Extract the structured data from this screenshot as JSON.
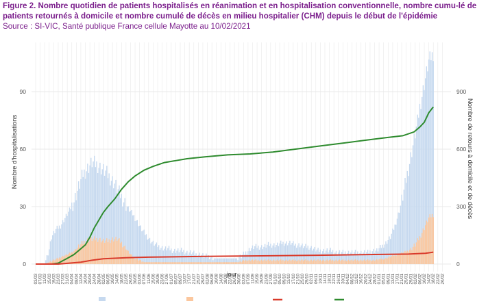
{
  "header": {
    "title": "Figure 2. Nombre quotidien de patients hospitalisés en réanimation et en hospitalisation conventionnelle, nombre cumu-lé de patients retournés à domicile et nombre cumulé de décès en milieu hospitalier (CHM) depuis le début de l'épidémie",
    "source": "Source : SI-VIC, Santé publique France cellule Mayotte au 10/02/2021"
  },
  "colors": {
    "hospit": "#c6d9ef",
    "rea": "#fbc79e",
    "deces": "#d93a2b",
    "retour": "#2e8b2e",
    "grid": "#e9e9e9",
    "axis_text": "#555555"
  },
  "chart_data": {
    "type": "bar",
    "xlabel": "jour",
    "ylabel": "Nombre d'hospitalisations",
    "y2label": "Nombre de retours à domicile et de décès",
    "ylim": [
      0,
      112
    ],
    "y2lim": [
      0,
      1120
    ],
    "yticks": [
      0,
      30,
      60,
      90
    ],
    "y2ticks": [
      0,
      300,
      600,
      900
    ],
    "grid": true,
    "x_tick_labels": [
      "03/03",
      "07/03",
      "11/03",
      "15/03",
      "19/03",
      "23/03",
      "27/03",
      "31/03",
      "04/04",
      "08/04",
      "12/04",
      "16/04",
      "20/04",
      "24/04",
      "28/04",
      "02/05",
      "06/05",
      "10/05",
      "14/05",
      "18/05",
      "22/05",
      "26/05",
      "30/05",
      "03/06",
      "07/06",
      "11/06",
      "15/06",
      "19/06",
      "23/06",
      "27/06",
      "01/07",
      "05/07",
      "09/07",
      "13/07",
      "17/07",
      "21/07",
      "25/07",
      "29/07",
      "02/08",
      "06/08",
      "10/08",
      "14/08",
      "18/08",
      "22/08",
      "26/08",
      "30/08",
      "03/09",
      "07/09",
      "11/09",
      "15/09",
      "19/09",
      "23/09",
      "27/09",
      "01/10",
      "05/10",
      "09/10",
      "13/10",
      "17/10",
      "21/10",
      "25/10",
      "29/10",
      "02/11",
      "06/11",
      "10/11",
      "14/11",
      "18/11",
      "22/11",
      "26/11",
      "30/11",
      "04/12",
      "08/12",
      "12/12",
      "16/12",
      "20/12",
      "24/12",
      "28/12",
      "01/01",
      "05/01",
      "09/01",
      "13/01",
      "17/01",
      "21/01",
      "25/01",
      "29/01",
      "02/02",
      "06/02",
      "10/02",
      "14/02",
      "18/02",
      "22/02",
      "26/02"
    ],
    "legend_position": "bottom",
    "series": [
      {
        "key": "hospit",
        "kind": "bar",
        "y_axis": "left",
        "points": [
          [
            0,
            0
          ],
          [
            6,
            0
          ],
          [
            8,
            0
          ],
          [
            10,
            4
          ],
          [
            12,
            8
          ],
          [
            14,
            14
          ],
          [
            18,
            18
          ],
          [
            22,
            20
          ],
          [
            26,
            24
          ],
          [
            30,
            28
          ],
          [
            34,
            33
          ],
          [
            38,
            40
          ],
          [
            42,
            47
          ],
          [
            46,
            50
          ],
          [
            50,
            53
          ],
          [
            54,
            52
          ],
          [
            58,
            50
          ],
          [
            62,
            48
          ],
          [
            66,
            45
          ],
          [
            70,
            42
          ],
          [
            74,
            37
          ],
          [
            78,
            33
          ],
          [
            82,
            29
          ],
          [
            86,
            26
          ],
          [
            90,
            22
          ],
          [
            94,
            18
          ],
          [
            98,
            15
          ],
          [
            102,
            12
          ],
          [
            106,
            10
          ],
          [
            110,
            9
          ],
          [
            114,
            8
          ],
          [
            118,
            8
          ],
          [
            122,
            7
          ],
          [
            126,
            7
          ],
          [
            130,
            7
          ],
          [
            134,
            6
          ],
          [
            138,
            6
          ],
          [
            142,
            5
          ],
          [
            146,
            5
          ],
          [
            150,
            4
          ],
          [
            154,
            4
          ],
          [
            158,
            3
          ],
          [
            162,
            3
          ],
          [
            166,
            3
          ],
          [
            170,
            3
          ],
          [
            174,
            3
          ],
          [
            178,
            3
          ],
          [
            182,
            4
          ],
          [
            186,
            6
          ],
          [
            190,
            8
          ],
          [
            194,
            9
          ],
          [
            198,
            9
          ],
          [
            202,
            9
          ],
          [
            206,
            10
          ],
          [
            210,
            10
          ],
          [
            214,
            10
          ],
          [
            218,
            11
          ],
          [
            222,
            11
          ],
          [
            226,
            11
          ],
          [
            230,
            10
          ],
          [
            234,
            10
          ],
          [
            238,
            9
          ],
          [
            242,
            9
          ],
          [
            246,
            8
          ],
          [
            250,
            7
          ],
          [
            254,
            7
          ],
          [
            258,
            7
          ],
          [
            262,
            7
          ],
          [
            266,
            6
          ],
          [
            270,
            6
          ],
          [
            274,
            6
          ],
          [
            278,
            6
          ],
          [
            282,
            6
          ],
          [
            286,
            6
          ],
          [
            290,
            6
          ],
          [
            294,
            6
          ],
          [
            298,
            7
          ],
          [
            302,
            7
          ],
          [
            306,
            9
          ],
          [
            310,
            11
          ],
          [
            314,
            14
          ],
          [
            318,
            20
          ],
          [
            322,
            28
          ],
          [
            326,
            38
          ],
          [
            330,
            50
          ],
          [
            334,
            62
          ],
          [
            338,
            74
          ],
          [
            340,
            82
          ],
          [
            342,
            88
          ],
          [
            344,
            94
          ],
          [
            346,
            100
          ],
          [
            348,
            106
          ],
          [
            350,
            108
          ],
          [
            352,
            110
          ]
        ]
      },
      {
        "key": "rea",
        "kind": "bar",
        "y_axis": "left",
        "points": [
          [
            0,
            0
          ],
          [
            8,
            0
          ],
          [
            12,
            1
          ],
          [
            16,
            2
          ],
          [
            20,
            3
          ],
          [
            24,
            4
          ],
          [
            28,
            5
          ],
          [
            32,
            6
          ],
          [
            36,
            8
          ],
          [
            40,
            10
          ],
          [
            44,
            12
          ],
          [
            48,
            13
          ],
          [
            52,
            13
          ],
          [
            56,
            13
          ],
          [
            60,
            12
          ],
          [
            64,
            12
          ],
          [
            68,
            13
          ],
          [
            72,
            13
          ],
          [
            76,
            11
          ],
          [
            80,
            8
          ],
          [
            84,
            5
          ],
          [
            88,
            3
          ],
          [
            92,
            2
          ],
          [
            96,
            1
          ],
          [
            100,
            1
          ],
          [
            140,
            1
          ],
          [
            180,
            1
          ],
          [
            186,
            2
          ],
          [
            200,
            2
          ],
          [
            220,
            2
          ],
          [
            240,
            2
          ],
          [
            260,
            2
          ],
          [
            280,
            2
          ],
          [
            300,
            2
          ],
          [
            310,
            3
          ],
          [
            320,
            5
          ],
          [
            330,
            7
          ],
          [
            336,
            10
          ],
          [
            340,
            14
          ],
          [
            344,
            19
          ],
          [
            348,
            24
          ],
          [
            352,
            26
          ]
        ]
      },
      {
        "key": "deces",
        "kind": "line",
        "y_axis": "right",
        "points": [
          [
            0,
            0
          ],
          [
            20,
            0
          ],
          [
            30,
            5
          ],
          [
            40,
            10
          ],
          [
            50,
            20
          ],
          [
            60,
            28
          ],
          [
            80,
            33
          ],
          [
            100,
            36
          ],
          [
            150,
            40
          ],
          [
            200,
            43
          ],
          [
            250,
            46
          ],
          [
            300,
            50
          ],
          [
            330,
            52
          ],
          [
            345,
            56
          ],
          [
            352,
            62
          ]
        ]
      },
      {
        "key": "retour",
        "kind": "line",
        "y_axis": "right",
        "points": [
          [
            0,
            0
          ],
          [
            14,
            0
          ],
          [
            20,
            5
          ],
          [
            28,
            30
          ],
          [
            34,
            50
          ],
          [
            40,
            80
          ],
          [
            44,
            100
          ],
          [
            48,
            140
          ],
          [
            52,
            190
          ],
          [
            56,
            230
          ],
          [
            60,
            270
          ],
          [
            64,
            300
          ],
          [
            70,
            340
          ],
          [
            76,
            390
          ],
          [
            82,
            430
          ],
          [
            88,
            460
          ],
          [
            96,
            490
          ],
          [
            104,
            510
          ],
          [
            114,
            530
          ],
          [
            124,
            540
          ],
          [
            134,
            550
          ],
          [
            150,
            560
          ],
          [
            170,
            570
          ],
          [
            190,
            575
          ],
          [
            210,
            585
          ],
          [
            230,
            600
          ],
          [
            250,
            615
          ],
          [
            270,
            630
          ],
          [
            290,
            645
          ],
          [
            310,
            660
          ],
          [
            325,
            670
          ],
          [
            335,
            690
          ],
          [
            340,
            715
          ],
          [
            344,
            740
          ],
          [
            348,
            790
          ],
          [
            352,
            820
          ]
        ]
      }
    ]
  }
}
